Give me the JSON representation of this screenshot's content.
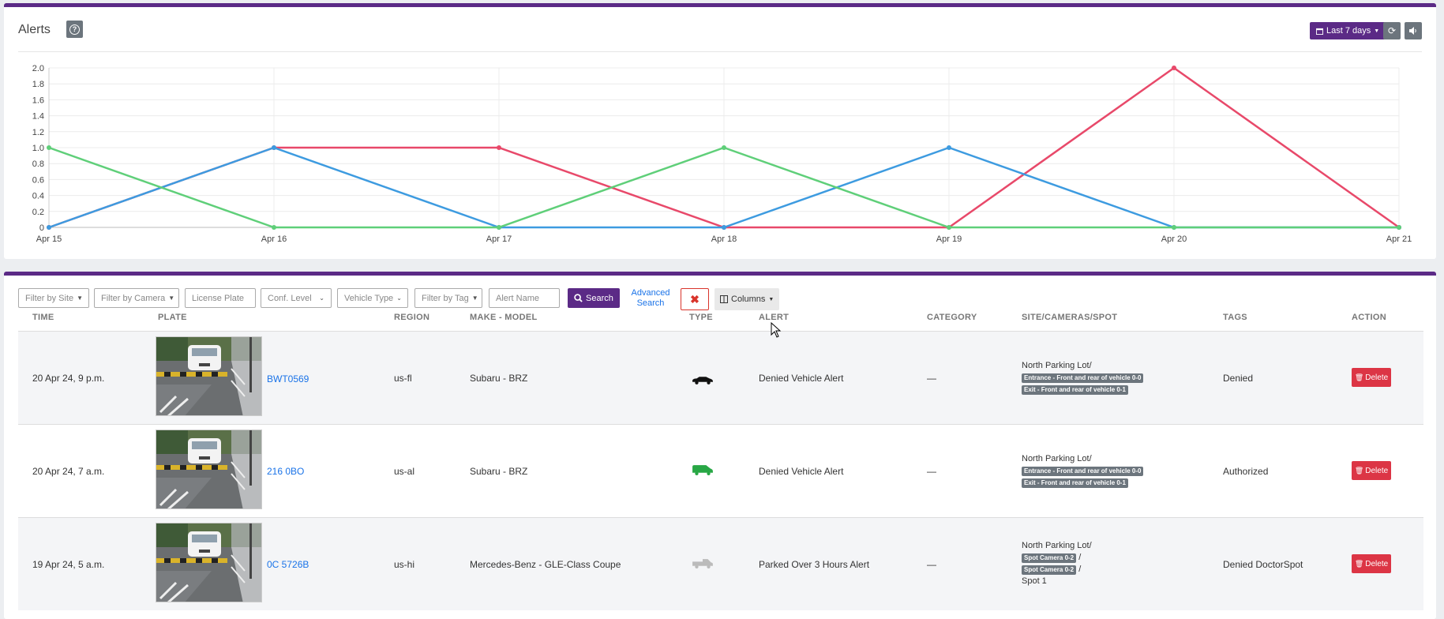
{
  "chart_card": {
    "title": "Alerts",
    "range_label": "Last 7 days",
    "help_icon": "question-icon",
    "refresh_icon": "refresh-icon",
    "sound_icon": "volume-icon"
  },
  "chart_data": {
    "type": "line",
    "title": "",
    "categories": [
      "Apr 15",
      "Apr 16",
      "Apr 17",
      "Apr 18",
      "Apr 19",
      "Apr 20",
      "Apr 21"
    ],
    "ylim": [
      0,
      2.0
    ],
    "yticks": [
      "0",
      "0.2",
      "0.4",
      "0.6",
      "0.8",
      "1.0",
      "1.2",
      "1.4",
      "1.6",
      "1.8",
      "2.0"
    ],
    "grid": true,
    "series": [
      {
        "color": "#e8496a",
        "values": [
          0,
          1,
          1,
          0,
          0,
          2,
          0
        ]
      },
      {
        "color": "#3d9be0",
        "values": [
          0,
          1,
          0,
          0,
          1,
          0,
          0
        ]
      },
      {
        "color": "#5fcf79",
        "values": [
          1,
          0,
          0,
          1,
          0,
          0,
          0
        ]
      }
    ]
  },
  "filters": {
    "site_placeholder": "Filter by Site",
    "camera_placeholder": "Filter by Camera",
    "plate_placeholder": "License Plate",
    "conf_placeholder": "Conf. Level",
    "vehicle_type_placeholder": "Vehicle Type",
    "tag_placeholder": "Filter by Tag",
    "alert_name_placeholder": "Alert Name",
    "search_label": "Search",
    "advanced_search_line1": "Advanced",
    "advanced_search_line2": "Search",
    "clear_icon": "close-icon",
    "columns_label": "Columns"
  },
  "table": {
    "headers": {
      "time": "TIME",
      "plate": "PLATE",
      "region": "REGION",
      "make_model": "MAKE - MODEL",
      "type": "TYPE",
      "alert": "ALERT",
      "category": "CATEGORY",
      "site": "SITE/CAMERAS/SPOT",
      "tags": "TAGS",
      "action": "ACTION"
    },
    "rows": [
      {
        "time": "20 Apr 24, 9 p.m.",
        "plate": "BWT0569",
        "region": "us-fl",
        "make_model": "Subaru - BRZ",
        "type_icon": "car-icon",
        "type_color": "#111111",
        "alert": "Denied Vehicle Alert",
        "category": "—",
        "site": "North Parking Lot/",
        "badge1": "Entrance - Front and rear of vehicle 0-0",
        "badge2": "Exit - Front and rear of vehicle 0-1",
        "tags": "Denied",
        "delete_label": "Delete"
      },
      {
        "time": "20 Apr 24, 7 a.m.",
        "plate": "216 0BO",
        "region": "us-al",
        "make_model": "Subaru - BRZ",
        "type_icon": "van-icon",
        "type_color": "#28a745",
        "alert": "Denied Vehicle Alert",
        "category": "—",
        "site": "North Parking Lot/",
        "badge1": "Entrance - Front and rear of vehicle 0-0",
        "badge2": "Exit - Front and rear of vehicle 0-1",
        "tags": "Authorized",
        "delete_label": "Delete"
      },
      {
        "time": "19 Apr 24, 5 a.m.",
        "plate": "0C 5726B",
        "region": "us-hi",
        "make_model": "Mercedes-Benz - GLE-Class Coupe",
        "type_icon": "pickup-icon",
        "type_color": "#bbbbbb",
        "alert": "Parked Over 3 Hours Alert",
        "category": "—",
        "site": "North Parking Lot/",
        "badge1": "Spot Camera 0-2",
        "slash1": "/",
        "badge2": "Spot Camera 0-2",
        "slash2": "/",
        "spot": "Spot 1",
        "tags": "Denied DoctorSpot",
        "delete_label": "Delete"
      }
    ]
  }
}
